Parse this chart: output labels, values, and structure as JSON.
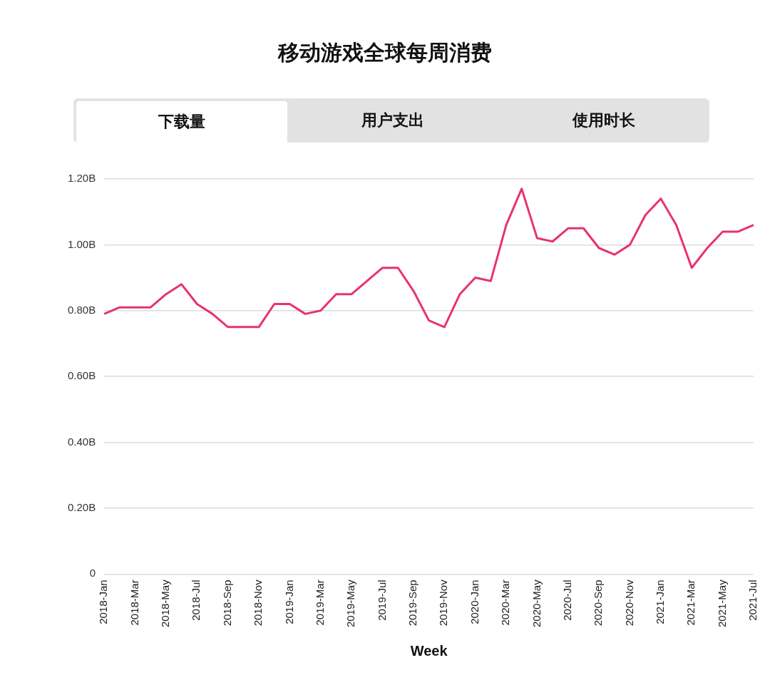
{
  "chart_data": {
    "type": "line",
    "title": "移动游戏全球每周消费",
    "xlabel": "Week",
    "annotations": [
      "下载量",
      "用户支出",
      "使用时长"
    ],
    "categories": [
      "2018-Jan",
      null,
      "2018-Mar",
      null,
      "2018-May",
      null,
      "2018-Jul",
      null,
      "2018-Sep",
      null,
      "2018-Nov",
      null,
      "2019-Jan",
      null,
      "2019-Mar",
      null,
      "2019-May",
      null,
      "2019-Jul",
      null,
      "2019-Sep",
      null,
      "2019-Nov",
      null,
      "2020-Jan",
      null,
      "2020-Mar",
      null,
      "2020-May",
      null,
      "2020-Jul",
      null,
      "2020-Sep",
      null,
      "2020-Nov",
      null,
      "2021-Jan",
      null,
      "2021-Mar",
      null,
      "2021-May",
      null,
      "2021-Jul"
    ],
    "series": [
      {
        "color": "#e8336d",
        "values": [
          0.79,
          0.81,
          0.81,
          0.81,
          0.85,
          0.88,
          0.82,
          0.79,
          0.75,
          0.75,
          0.75,
          0.82,
          0.82,
          0.79,
          0.8,
          0.85,
          0.85,
          0.89,
          0.93,
          0.93,
          0.86,
          0.77,
          0.75,
          0.85,
          0.9,
          0.89,
          1.06,
          1.17,
          1.02,
          1.01,
          1.05,
          1.05,
          0.99,
          0.97,
          1.0,
          1.09,
          1.14,
          1.06,
          0.93,
          0.99,
          1.04,
          1.04,
          1.06
        ]
      }
    ],
    "ylim": [
      0,
      1.2
    ],
    "yticks": [
      0,
      {
        "value": 0.2,
        "label": "0.20B"
      },
      {
        "value": 0.4,
        "label": "0.40B"
      },
      {
        "value": 0.6,
        "label": "0.60B"
      },
      {
        "value": 0.8,
        "label": "0.80B"
      },
      {
        "value": 1.0,
        "label": "1.00B"
      },
      {
        "value": 1.2,
        "label": "1.20B"
      }
    ],
    "grid": "y",
    "legend": false,
    "marker": "none",
    "line_style": "solid"
  }
}
